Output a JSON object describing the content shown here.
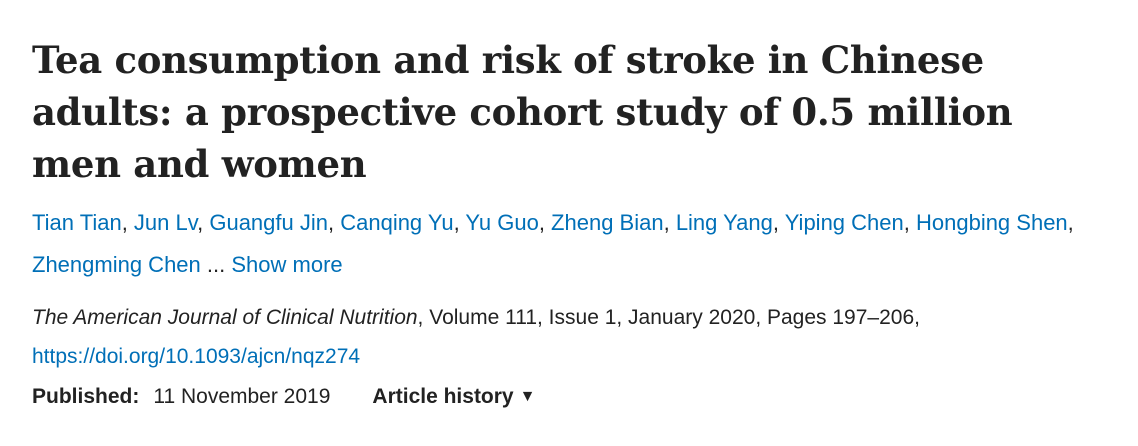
{
  "article": {
    "title": "Tea consumption and risk of stroke in Chinese adults: a prospective cohort study of 0.5 million men and women",
    "authors": [
      "Tian Tian",
      "Jun Lv",
      "Guangfu Jin",
      "Canqing Yu",
      "Yu Guo",
      "Zheng Bian",
      "Ling Yang",
      "Yiping Chen",
      "Hongbing Shen",
      "Zhengming Chen"
    ],
    "ellipsis": "...",
    "show_more_label": "Show more",
    "citation": {
      "journal": "The American Journal of Clinical Nutrition",
      "details": ", Volume 111, Issue 1, January 2020, Pages 197–206, ",
      "doi": "https://doi.org/10.1093/ajcn/nqz274"
    },
    "published_label": "Published:",
    "published_date": "11 November 2019",
    "history_label": "Article history",
    "history_icon": "▼"
  },
  "colors": {
    "link": "#006fb7",
    "text": "#222222"
  }
}
